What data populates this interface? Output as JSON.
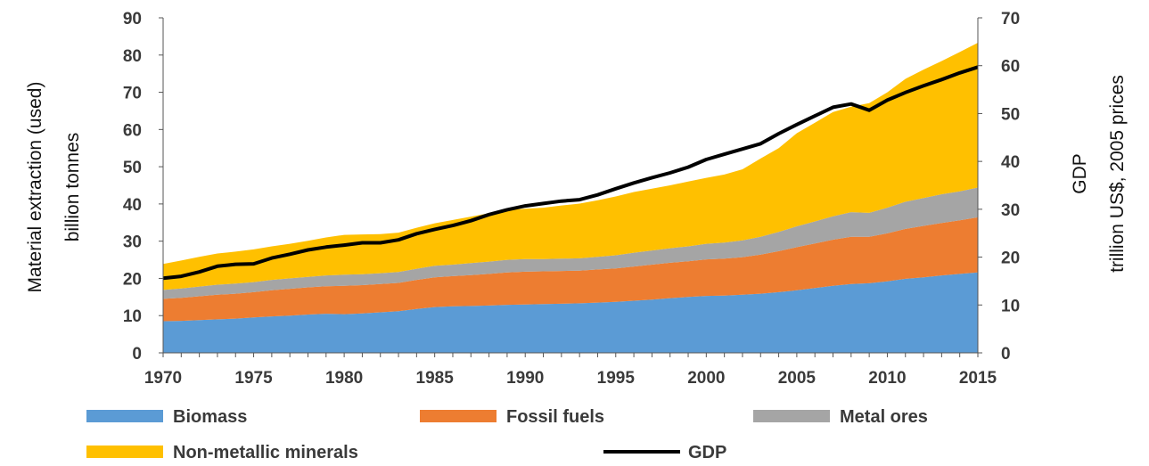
{
  "chart_data": {
    "type": "area",
    "stacked": true,
    "x": [
      1970,
      1971,
      1972,
      1973,
      1974,
      1975,
      1976,
      1977,
      1978,
      1979,
      1980,
      1981,
      1982,
      1983,
      1984,
      1985,
      1986,
      1987,
      1988,
      1989,
      1990,
      1991,
      1992,
      1993,
      1994,
      1995,
      1996,
      1997,
      1998,
      1999,
      2000,
      2001,
      2002,
      2003,
      2004,
      2005,
      2006,
      2007,
      2008,
      2009,
      2010,
      2011,
      2012,
      2013,
      2014,
      2015
    ],
    "x_ticks": [
      "1970",
      "1975",
      "1980",
      "1985",
      "1990",
      "1995",
      "2000",
      "2005",
      "2010",
      "2015"
    ],
    "xlim": [
      1970,
      2015
    ],
    "y_left": {
      "title_line1": "Material extraction (used)",
      "title_line2": "billion tonnes",
      "lim": [
        0,
        90
      ],
      "ticks": [
        "0",
        "10",
        "20",
        "30",
        "40",
        "50",
        "60",
        "70",
        "80",
        "90"
      ]
    },
    "y_right": {
      "title_line1": "GDP",
      "title_line2": "trillion US$, 2005 prices",
      "lim": [
        0,
        70
      ],
      "ticks": [
        "0",
        "10",
        "20",
        "30",
        "40",
        "50",
        "60",
        "70"
      ]
    },
    "grid": false,
    "legend_position": "bottom",
    "series": [
      {
        "name": "Biomass",
        "color": "#5b9bd5",
        "axis": "left",
        "values": [
          8.5,
          8.6,
          8.8,
          9.0,
          9.2,
          9.5,
          9.8,
          10.0,
          10.3,
          10.5,
          10.4,
          10.6,
          10.9,
          11.2,
          11.8,
          12.3,
          12.5,
          12.6,
          12.7,
          12.9,
          13.0,
          13.1,
          13.2,
          13.3,
          13.5,
          13.7,
          14.0,
          14.3,
          14.7,
          15.0,
          15.3,
          15.4,
          15.6,
          15.9,
          16.3,
          16.8,
          17.4,
          18.0,
          18.5,
          18.7,
          19.2,
          19.9,
          20.3,
          20.8,
          21.2,
          21.6
        ]
      },
      {
        "name": "Fossil fuels",
        "color": "#ed7d31",
        "axis": "left",
        "values": [
          6.0,
          6.2,
          6.4,
          6.6,
          6.7,
          6.8,
          7.0,
          7.2,
          7.3,
          7.4,
          7.6,
          7.6,
          7.6,
          7.6,
          7.8,
          8.0,
          8.1,
          8.3,
          8.5,
          8.7,
          8.8,
          8.8,
          8.8,
          8.8,
          8.9,
          9.0,
          9.2,
          9.4,
          9.5,
          9.6,
          9.8,
          9.9,
          10.1,
          10.5,
          11.0,
          11.6,
          12.0,
          12.4,
          12.7,
          12.5,
          12.9,
          13.4,
          13.8,
          14.1,
          14.4,
          14.8
        ]
      },
      {
        "name": "Metal ores",
        "color": "#a5a5a5",
        "axis": "left",
        "values": [
          2.4,
          2.5,
          2.6,
          2.7,
          2.7,
          2.7,
          2.8,
          2.8,
          2.8,
          2.9,
          3.0,
          2.9,
          2.9,
          2.9,
          3.0,
          3.1,
          3.1,
          3.2,
          3.3,
          3.4,
          3.4,
          3.3,
          3.3,
          3.3,
          3.4,
          3.5,
          3.7,
          3.8,
          3.9,
          4.0,
          4.2,
          4.3,
          4.5,
          4.8,
          5.2,
          5.6,
          5.9,
          6.3,
          6.6,
          6.4,
          6.9,
          7.3,
          7.5,
          7.7,
          7.8,
          8.0
        ]
      },
      {
        "name": "Non-metallic minerals",
        "color": "#ffc000",
        "axis": "left",
        "values": [
          7.0,
          7.5,
          8.0,
          8.4,
          8.6,
          8.8,
          9.0,
          9.3,
          9.7,
          10.2,
          10.7,
          10.7,
          10.5,
          10.6,
          11.0,
          11.4,
          12.0,
          12.5,
          13.0,
          13.4,
          13.5,
          13.8,
          14.3,
          14.7,
          15.2,
          15.8,
          16.3,
          16.6,
          16.9,
          17.4,
          17.7,
          18.3,
          19.1,
          21.0,
          22.5,
          25.0,
          26.5,
          28.0,
          28.3,
          29.5,
          31.0,
          33.0,
          34.5,
          35.8,
          37.4,
          38.9
        ]
      },
      {
        "name": "GDP",
        "color": "#000000",
        "axis": "right",
        "kind": "line",
        "values": [
          15.6,
          16.0,
          16.9,
          18.1,
          18.5,
          18.6,
          19.8,
          20.6,
          21.5,
          22.1,
          22.5,
          23.0,
          23.0,
          23.6,
          24.9,
          25.8,
          26.6,
          27.6,
          28.9,
          29.9,
          30.7,
          31.2,
          31.7,
          32.0,
          33.0,
          34.3,
          35.5,
          36.6,
          37.6,
          38.8,
          40.4,
          41.5,
          42.6,
          43.7,
          45.8,
          47.7,
          49.5,
          51.3,
          52.0,
          50.7,
          52.8,
          54.4,
          55.8,
          57.1,
          58.5,
          59.7
        ]
      }
    ]
  }
}
